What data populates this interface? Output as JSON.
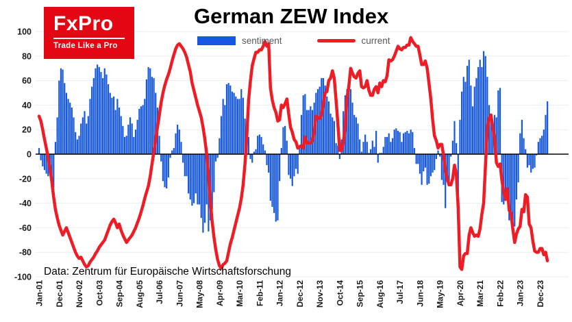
{
  "logo": {
    "name": "FxPro",
    "tagline": "Trade Like a Pro",
    "bg_color": "#e30613"
  },
  "header": {
    "title": "German ZEW Index"
  },
  "legend": {
    "items": [
      {
        "label": "sentiment",
        "color": "#1758e0",
        "type": "bar"
      },
      {
        "label": "current",
        "color": "#ee1c25",
        "type": "line"
      }
    ]
  },
  "footer": {
    "source": "Data: Zentrum für Europäische Wirtschaftsforschung"
  },
  "chart_data": {
    "type": "bar",
    "title": "German ZEW Index",
    "xlabel": "",
    "ylabel": "",
    "ylim": [
      -100,
      100
    ],
    "grid": "faint-horizontal",
    "legend_position": "top-center",
    "x_start": "Jan-01",
    "x_frequency": "monthly",
    "x_tick_every_months": 11,
    "x_tick_labels": [
      "Jan-01",
      "Dec-01",
      "Nov-02",
      "Oct-03",
      "Sep-04",
      "Aug-05",
      "Jul-06",
      "Jun-07",
      "May-08",
      "Apr-09",
      "Mar-10",
      "Feb-11",
      "Jan-12",
      "Dec-12",
      "Nov-13",
      "Oct-14",
      "Sep-15",
      "Aug-16",
      "Jul-17",
      "Jun-18",
      "May-19",
      "Apr-20",
      "Mar-21",
      "Feb-22",
      "Jan-23",
      "Dec-23"
    ],
    "y_ticks": [
      100,
      80,
      60,
      40,
      20,
      0,
      -20,
      -40,
      -60,
      -80,
      -100
    ],
    "series": [
      {
        "name": "sentiment",
        "type": "bar",
        "color": "#1758e0",
        "values": [
          5,
          -5,
          -10,
          -13,
          -16,
          -18,
          -12,
          -21,
          -27,
          10,
          30,
          60,
          70,
          69,
          58,
          50,
          45,
          42,
          38,
          30,
          18,
          12,
          15,
          25,
          30,
          35,
          25,
          31,
          45,
          55,
          62,
          70,
          73,
          71,
          67,
          62,
          70,
          65,
          57,
          50,
          46,
          47,
          36,
          45,
          38,
          31,
          23,
          14,
          15,
          24,
          30,
          25,
          14,
          20,
          28,
          37,
          39,
          40,
          45,
          61,
          71,
          70,
          63,
          62,
          50,
          38,
          15,
          -6,
          -22,
          -27,
          -28,
          -19,
          -3,
          3,
          5,
          17,
          24,
          20,
          10,
          -7,
          -18,
          -18,
          -32,
          -37,
          -42,
          -40,
          -32,
          -41,
          -41,
          -52,
          -64,
          -56,
          -41,
          -63,
          -54,
          -45,
          -31,
          -6,
          -3,
          13,
          31,
          45,
          40,
          57,
          58,
          56,
          51,
          50,
          47,
          45,
          45,
          53,
          46,
          29,
          21,
          14,
          -4,
          -7,
          2,
          4,
          15,
          16,
          14,
          8,
          3,
          -9,
          -15,
          -38,
          -43,
          -48,
          -55,
          -54,
          -22,
          5,
          22,
          23,
          11,
          -17,
          -20,
          -26,
          -18,
          -12,
          -16,
          7,
          32,
          48,
          49,
          36,
          36,
          39,
          36,
          42,
          50,
          53,
          55,
          62,
          62,
          56,
          47,
          43,
          33,
          30,
          27,
          9,
          7,
          -4,
          12,
          35,
          48,
          53,
          55,
          53,
          42,
          32,
          30,
          25,
          12,
          2,
          10,
          16,
          10,
          1,
          4,
          11,
          6,
          19,
          -7,
          1,
          1,
          6,
          14,
          14,
          17,
          10,
          13,
          20,
          21,
          19,
          18,
          10,
          17,
          18,
          19,
          17,
          20,
          18,
          5,
          -8,
          -8,
          -16,
          -25,
          -14,
          -11,
          -25,
          -24,
          -18,
          -15,
          -13,
          -4,
          3,
          -2,
          -21,
          -25,
          -44,
          -23,
          -23,
          -2,
          11,
          27,
          9,
          -50,
          28,
          51,
          63,
          59,
          72,
          77,
          56,
          39,
          55,
          62,
          71,
          77,
          71,
          84,
          80,
          63,
          40,
          27,
          22,
          32,
          30,
          52,
          54,
          -39,
          -41,
          -34,
          -28,
          -54,
          -55,
          -62,
          -59,
          -37,
          -23,
          17,
          28,
          13,
          4,
          -11,
          -9,
          -15,
          -12,
          -11,
          -1,
          10,
          13,
          15,
          20,
          32,
          43
        ]
      },
      {
        "name": "current",
        "type": "line",
        "color": "#ee1c25",
        "values": [
          31,
          27,
          20,
          12,
          5,
          -3,
          -12,
          -22,
          -35,
          -45,
          -52,
          -58,
          -62,
          -66,
          -63,
          -60,
          -64,
          -68,
          -72,
          -76,
          -80,
          -83,
          -85,
          -84,
          -87,
          -90,
          -92,
          -91,
          -88,
          -86,
          -84,
          -81,
          -79,
          -76,
          -74,
          -72,
          -70,
          -66,
          -62,
          -58,
          -55,
          -53,
          -56,
          -60,
          -57,
          -62,
          -66,
          -69,
          -72,
          -70,
          -68,
          -66,
          -63,
          -60,
          -56,
          -52,
          -47,
          -42,
          -36,
          -31,
          -26,
          -18,
          -8,
          2,
          12,
          22,
          32,
          42,
          50,
          56,
          61,
          65,
          70,
          76,
          81,
          86,
          89,
          90,
          88,
          86,
          83,
          79,
          73,
          67,
          58,
          52,
          46,
          40,
          35,
          30,
          22,
          12,
          0,
          -18,
          -38,
          -55,
          -68,
          -78,
          -86,
          -91,
          -93,
          -90,
          -89,
          -87,
          -80,
          -73,
          -68,
          -62,
          -56,
          -50,
          -44,
          -36,
          -25,
          -8,
          14,
          44,
          60,
          72,
          78,
          83,
          83,
          85,
          85,
          88,
          92,
          88,
          90,
          54,
          44,
          38,
          34,
          27,
          28,
          40,
          38,
          41,
          45,
          33,
          22,
          18,
          12,
          10,
          5,
          6,
          7,
          5,
          14,
          9,
          9,
          9,
          11,
          18,
          31,
          30,
          29,
          32,
          41,
          50,
          51,
          60,
          62,
          68,
          62,
          44,
          25,
          3,
          3,
          10,
          22,
          46,
          55,
          70,
          66,
          63,
          62,
          66,
          68,
          55,
          54,
          55,
          60,
          52,
          48,
          48,
          53,
          55,
          50,
          58,
          55,
          60,
          59,
          64,
          77,
          76,
          77,
          80,
          84,
          88,
          86,
          85,
          87,
          87,
          89,
          89,
          95,
          92,
          90,
          88,
          88,
          81,
          73,
          73,
          76,
          70,
          58,
          45,
          28,
          15,
          11,
          5,
          8,
          8,
          -1,
          -13,
          -20,
          -25,
          -25,
          -20,
          -9,
          -16,
          -43,
          -92,
          -94,
          -83,
          -81,
          -81,
          -66,
          -60,
          -64,
          -67,
          -66,
          -67,
          -61,
          -49,
          -40,
          -9,
          22,
          29,
          32,
          22,
          13,
          -7,
          -10,
          -8,
          -21,
          -31,
          -37,
          -28,
          -46,
          -48,
          -61,
          -72,
          -65,
          -61,
          -59,
          -45,
          -47,
          -33,
          -35,
          -57,
          -60,
          -71,
          -79,
          -80,
          -80,
          -77,
          -77,
          -82,
          -80,
          -87
        ]
      }
    ]
  }
}
